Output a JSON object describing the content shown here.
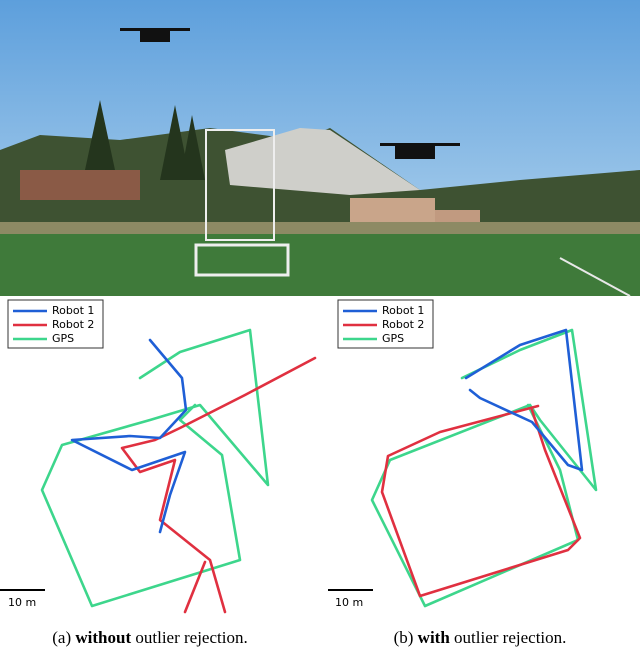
{
  "figure": {
    "panels": [
      {
        "legend": [
          "Robot 1",
          "Robot 2",
          "GPS"
        ],
        "scale_bar": "10 m",
        "caption": {
          "label": "(a)",
          "emphasis": "without",
          "text": "outlier rejection."
        }
      },
      {
        "legend": [
          "Robot 1",
          "Robot 2",
          "GPS"
        ],
        "scale_bar": "10 m",
        "caption": {
          "label": "(b)",
          "emphasis": "with",
          "text": "outlier rejection."
        }
      }
    ]
  }
}
